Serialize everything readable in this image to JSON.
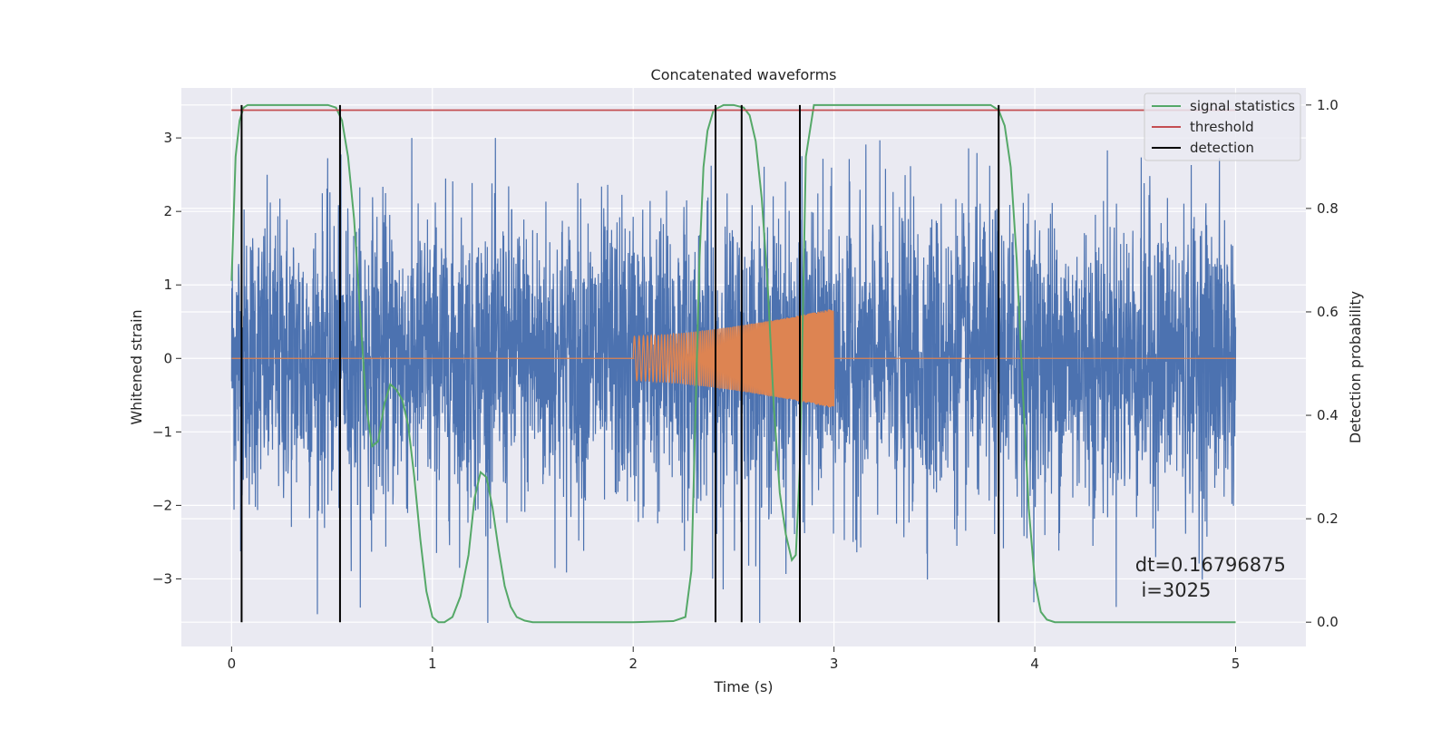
{
  "chart_data": {
    "type": "line",
    "title": "Concatenated waveforms",
    "xlabel": "Time (s)",
    "ylabel": "Whitened strain",
    "y2label": "Detection probability",
    "xlim": [
      -0.25,
      5.35
    ],
    "ylim": [
      -3.92,
      3.68
    ],
    "y2lim": [
      -0.047,
      1.033
    ],
    "x_ticks": [
      0,
      1,
      2,
      3,
      4,
      5
    ],
    "x_tick_labels": [
      "0",
      "1",
      "2",
      "3",
      "4",
      "5"
    ],
    "y_ticks": [
      -3,
      -2,
      -1,
      0,
      1,
      2,
      3
    ],
    "y_tick_labels": [
      "−3",
      "−2",
      "−1",
      "0",
      "1",
      "2",
      "3"
    ],
    "y2_ticks": [
      0.0,
      0.2,
      0.4,
      0.6,
      0.8,
      1.0
    ],
    "y2_tick_labels": [
      "0.0",
      "0.2",
      "0.4",
      "0.6",
      "0.8",
      "1.0"
    ],
    "grid": true,
    "legend_position": "top-right",
    "colors": {
      "background": "#EAEAF2",
      "grid": "#FFFFFF",
      "strain": "#4C72B0",
      "injected": "#DD8452",
      "signal_statistics": "#55A868",
      "threshold": "#C44E52",
      "detection": "#000000"
    },
    "strain_noise": {
      "axis": "left",
      "x_range": [
        0,
        5
      ],
      "amplitude_range": [
        -3.6,
        3.0
      ],
      "description_values_note": "dense whitened noise spanning roughly -3.6 to 3.0"
    },
    "injected_chirp": {
      "axis": "left",
      "x_range": [
        2.0,
        3.0
      ],
      "amplitude_start": 0.3,
      "amplitude_end": 0.68,
      "flat_zero_outside": true
    },
    "series": [
      {
        "name": "signal statistics",
        "axis": "right",
        "x": [
          0.0,
          0.02,
          0.04,
          0.06,
          0.08,
          0.1,
          0.2,
          0.3,
          0.4,
          0.48,
          0.52,
          0.55,
          0.58,
          0.61,
          0.64,
          0.67,
          0.7,
          0.73,
          0.76,
          0.79,
          0.82,
          0.85,
          0.88,
          0.91,
          0.94,
          0.97,
          1.0,
          1.03,
          1.06,
          1.1,
          1.14,
          1.18,
          1.21,
          1.24,
          1.27,
          1.3,
          1.33,
          1.36,
          1.39,
          1.42,
          1.46,
          1.5,
          1.6,
          1.8,
          2.0,
          2.2,
          2.26,
          2.29,
          2.31,
          2.33,
          2.35,
          2.37,
          2.4,
          2.45,
          2.5,
          2.55,
          2.58,
          2.61,
          2.64,
          2.67,
          2.7,
          2.73,
          2.76,
          2.79,
          2.81,
          2.83,
          2.86,
          2.9,
          3.0,
          3.2,
          3.4,
          3.6,
          3.78,
          3.82,
          3.85,
          3.88,
          3.91,
          3.94,
          3.97,
          4.0,
          4.03,
          4.06,
          4.1,
          4.2,
          4.5,
          4.8,
          5.0
        ],
        "values": [
          0.66,
          0.9,
          0.97,
          0.995,
          1.0,
          1.0,
          1.0,
          1.0,
          1.0,
          1.0,
          0.995,
          0.97,
          0.9,
          0.78,
          0.6,
          0.42,
          0.34,
          0.35,
          0.42,
          0.46,
          0.45,
          0.43,
          0.38,
          0.28,
          0.16,
          0.06,
          0.01,
          0.0,
          0.0,
          0.01,
          0.05,
          0.13,
          0.24,
          0.29,
          0.28,
          0.22,
          0.14,
          0.07,
          0.03,
          0.01,
          0.003,
          0.0,
          0.0,
          0.0,
          0.0,
          0.002,
          0.01,
          0.1,
          0.4,
          0.7,
          0.88,
          0.95,
          0.99,
          1.0,
          1.0,
          0.995,
          0.98,
          0.93,
          0.82,
          0.65,
          0.42,
          0.25,
          0.17,
          0.12,
          0.13,
          0.3,
          0.9,
          1.0,
          1.0,
          1.0,
          1.0,
          1.0,
          1.0,
          0.99,
          0.96,
          0.88,
          0.7,
          0.45,
          0.22,
          0.08,
          0.02,
          0.005,
          0.0,
          0.0,
          0.0,
          0.0,
          0.0
        ]
      },
      {
        "name": "threshold",
        "axis": "right",
        "x": [
          0,
          5
        ],
        "values": [
          0.99,
          0.99
        ]
      },
      {
        "name": "detection",
        "axis": "right",
        "type": "vlines",
        "x": [
          0.05,
          0.54,
          2.41,
          2.54,
          2.83,
          3.82
        ],
        "ymin": 0.0,
        "ymax": 1.0
      }
    ],
    "legend": [
      "signal statistics",
      "threshold",
      "detection"
    ],
    "annotations": [
      "dt=0.16796875",
      " i=3025"
    ]
  }
}
